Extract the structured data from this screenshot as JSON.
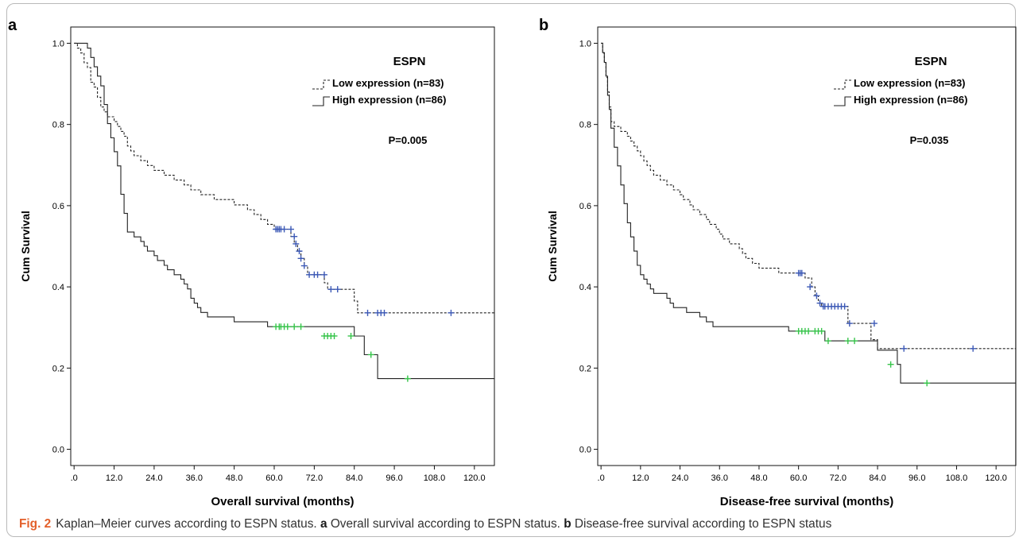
{
  "caption": {
    "fig_label": "Fig. 2",
    "intro": "Kaplan–Meier curves according to ESPN status.",
    "a_label": "a",
    "a_text": "Overall survival according to ESPN status.",
    "b_label": "b",
    "b_text": "Disease-free survival according to ESPN status"
  },
  "colors": {
    "line": "#222222",
    "low_censor": "#3c59b6",
    "high_censor": "#36c44a",
    "fig_label": "#e35f2a"
  },
  "chart_data": [
    {
      "type": "line",
      "panel_label": "a",
      "title": "ESPN",
      "xlabel": "Overall survival (months)",
      "ylabel": "Cum Survival",
      "xlim": [
        -1,
        126
      ],
      "ylim": [
        -0.04,
        1.04
      ],
      "xticks": [
        ".0",
        "12.0",
        "24.0",
        "36.0",
        "48.0",
        "60.0",
        "72.0",
        "84.0",
        "96.0",
        "108.0",
        "120.0"
      ],
      "yticks": [
        "0.0",
        "0.2",
        "0.4",
        "0.6",
        "0.8",
        "1.0"
      ],
      "grid": false,
      "legend_position": "top-right",
      "p_value": "P=0.005",
      "series": [
        {
          "name": "Low expression (n=83)",
          "style": "dashed",
          "steps": [
            [
              0,
              1.0
            ],
            [
              1,
              0.988
            ],
            [
              2,
              0.976
            ],
            [
              3,
              0.952
            ],
            [
              4,
              0.94
            ],
            [
              5,
              0.904
            ],
            [
              6,
              0.892
            ],
            [
              7,
              0.867
            ],
            [
              8,
              0.843
            ],
            [
              9,
              0.831
            ],
            [
              10,
              0.819
            ],
            [
              12,
              0.807
            ],
            [
              13,
              0.795
            ],
            [
              14,
              0.783
            ],
            [
              15,
              0.771
            ],
            [
              16,
              0.747
            ],
            [
              17,
              0.735
            ],
            [
              18,
              0.723
            ],
            [
              20,
              0.711
            ],
            [
              22,
              0.699
            ],
            [
              24,
              0.687
            ],
            [
              27,
              0.675
            ],
            [
              30,
              0.663
            ],
            [
              33,
              0.651
            ],
            [
              35,
              0.639
            ],
            [
              38,
              0.627
            ],
            [
              42,
              0.615
            ],
            [
              48,
              0.602
            ],
            [
              52,
              0.59
            ],
            [
              54,
              0.578
            ],
            [
              56,
              0.566
            ],
            [
              58,
              0.554
            ],
            [
              60,
              0.542
            ],
            [
              65,
              0.524
            ],
            [
              66,
              0.506
            ],
            [
              67,
              0.488
            ],
            [
              68,
              0.47
            ],
            [
              69,
              0.452
            ],
            [
              70,
              0.43
            ],
            [
              75,
              0.41
            ],
            [
              76,
              0.394
            ],
            [
              84,
              0.365
            ],
            [
              85,
              0.336
            ],
            [
              126,
              0.336
            ]
          ],
          "censored": [
            [
              60.5,
              0.542
            ],
            [
              61,
              0.542
            ],
            [
              61.5,
              0.542
            ],
            [
              62,
              0.542
            ],
            [
              63,
              0.542
            ],
            [
              65,
              0.542
            ],
            [
              66,
              0.524
            ],
            [
              66.5,
              0.506
            ],
            [
              67.5,
              0.488
            ],
            [
              68,
              0.47
            ],
            [
              69,
              0.452
            ],
            [
              70.5,
              0.43
            ],
            [
              72,
              0.43
            ],
            [
              73,
              0.43
            ],
            [
              75,
              0.43
            ],
            [
              77,
              0.394
            ],
            [
              79,
              0.394
            ],
            [
              88,
              0.336
            ],
            [
              91,
              0.336
            ],
            [
              92,
              0.336
            ],
            [
              93,
              0.336
            ],
            [
              113,
              0.336
            ]
          ]
        },
        {
          "name": "High expression (n=86)",
          "style": "solid",
          "steps": [
            [
              0,
              1.0
            ],
            [
              4,
              0.988
            ],
            [
              5,
              0.965
            ],
            [
              6,
              0.942
            ],
            [
              7,
              0.919
            ],
            [
              8,
              0.895
            ],
            [
              9,
              0.849
            ],
            [
              10,
              0.802
            ],
            [
              11,
              0.767
            ],
            [
              12,
              0.733
            ],
            [
              13,
              0.698
            ],
            [
              14,
              0.628
            ],
            [
              15,
              0.581
            ],
            [
              16,
              0.535
            ],
            [
              18,
              0.523
            ],
            [
              20,
              0.512
            ],
            [
              21,
              0.5
            ],
            [
              22,
              0.488
            ],
            [
              24,
              0.477
            ],
            [
              25,
              0.465
            ],
            [
              27,
              0.453
            ],
            [
              28,
              0.442
            ],
            [
              30,
              0.43
            ],
            [
              32,
              0.419
            ],
            [
              33,
              0.407
            ],
            [
              34,
              0.395
            ],
            [
              35,
              0.372
            ],
            [
              36,
              0.36
            ],
            [
              37,
              0.349
            ],
            [
              38,
              0.337
            ],
            [
              40,
              0.326
            ],
            [
              48,
              0.314
            ],
            [
              58,
              0.302
            ],
            [
              84,
              0.279
            ],
            [
              87,
              0.233
            ],
            [
              91,
              0.174
            ],
            [
              126,
              0.174
            ]
          ],
          "censored": [
            [
              60.5,
              0.302
            ],
            [
              61.5,
              0.302
            ],
            [
              62,
              0.302
            ],
            [
              63,
              0.302
            ],
            [
              64,
              0.302
            ],
            [
              66,
              0.302
            ],
            [
              68,
              0.302
            ],
            [
              75,
              0.279
            ],
            [
              76,
              0.279
            ],
            [
              77,
              0.279
            ],
            [
              78,
              0.279
            ],
            [
              83,
              0.279
            ],
            [
              89,
              0.233
            ],
            [
              100,
              0.174
            ]
          ]
        }
      ]
    },
    {
      "type": "line",
      "panel_label": "b",
      "title": "ESPN",
      "xlabel": "Disease-free survival (months)",
      "ylabel": "Cum Survival",
      "xlim": [
        -1,
        126
      ],
      "ylim": [
        -0.04,
        1.04
      ],
      "xticks": [
        ".0",
        "12.0",
        "24.0",
        "36.0",
        "48.0",
        "60.0",
        "72.0",
        "84.0",
        "96.0",
        "108.0",
        "120.0"
      ],
      "yticks": [
        "0.0",
        "0.2",
        "0.4",
        "0.6",
        "0.8",
        "1.0"
      ],
      "grid": false,
      "legend_position": "top-right",
      "p_value": "P=0.035",
      "series": [
        {
          "name": "Low expression (n=83)",
          "style": "dashed",
          "steps": [
            [
              0,
              1.0
            ],
            [
              0.5,
              0.976
            ],
            [
              1,
              0.952
            ],
            [
              1.5,
              0.916
            ],
            [
              2,
              0.88
            ],
            [
              2.5,
              0.843
            ],
            [
              3,
              0.807
            ],
            [
              4,
              0.795
            ],
            [
              6,
              0.783
            ],
            [
              8,
              0.771
            ],
            [
              9,
              0.759
            ],
            [
              10,
              0.747
            ],
            [
              11,
              0.735
            ],
            [
              12,
              0.723
            ],
            [
              13,
              0.71
            ],
            [
              14,
              0.699
            ],
            [
              15,
              0.687
            ],
            [
              16,
              0.675
            ],
            [
              18,
              0.663
            ],
            [
              20,
              0.651
            ],
            [
              22,
              0.639
            ],
            [
              24,
              0.627
            ],
            [
              25,
              0.615
            ],
            [
              27,
              0.602
            ],
            [
              28,
              0.59
            ],
            [
              30,
              0.578
            ],
            [
              32,
              0.566
            ],
            [
              33,
              0.554
            ],
            [
              35,
              0.542
            ],
            [
              36,
              0.53
            ],
            [
              37,
              0.518
            ],
            [
              39,
              0.506
            ],
            [
              42,
              0.494
            ],
            [
              43,
              0.482
            ],
            [
              44,
              0.47
            ],
            [
              46,
              0.458
            ],
            [
              48,
              0.446
            ],
            [
              54,
              0.434
            ],
            [
              62,
              0.422
            ],
            [
              64,
              0.4
            ],
            [
              65,
              0.378
            ],
            [
              66,
              0.36
            ],
            [
              67,
              0.352
            ],
            [
              75,
              0.31
            ],
            [
              82,
              0.27
            ],
            [
              84,
              0.248
            ],
            [
              126,
              0.248
            ]
          ],
          "censored": [
            [
              60,
              0.434
            ],
            [
              60.5,
              0.434
            ],
            [
              61,
              0.434
            ],
            [
              63.5,
              0.4
            ],
            [
              65.5,
              0.378
            ],
            [
              66.5,
              0.36
            ],
            [
              67.5,
              0.352
            ],
            [
              68,
              0.352
            ],
            [
              69,
              0.352
            ],
            [
              70,
              0.352
            ],
            [
              71,
              0.352
            ],
            [
              72,
              0.352
            ],
            [
              73,
              0.352
            ],
            [
              74,
              0.352
            ],
            [
              75.5,
              0.31
            ],
            [
              83,
              0.31
            ],
            [
              92,
              0.248
            ],
            [
              113,
              0.248
            ]
          ]
        },
        {
          "name": "High expression (n=86)",
          "style": "solid",
          "steps": [
            [
              0,
              1.0
            ],
            [
              0.5,
              0.977
            ],
            [
              1,
              0.953
            ],
            [
              1.5,
              0.919
            ],
            [
              2,
              0.872
            ],
            [
              2.5,
              0.837
            ],
            [
              3,
              0.791
            ],
            [
              4,
              0.744
            ],
            [
              5,
              0.698
            ],
            [
              6,
              0.651
            ],
            [
              7,
              0.605
            ],
            [
              8,
              0.558
            ],
            [
              9,
              0.523
            ],
            [
              10,
              0.488
            ],
            [
              11,
              0.453
            ],
            [
              12,
              0.43
            ],
            [
              13,
              0.419
            ],
            [
              14,
              0.407
            ],
            [
              15,
              0.395
            ],
            [
              16,
              0.384
            ],
            [
              20,
              0.372
            ],
            [
              21,
              0.36
            ],
            [
              22,
              0.349
            ],
            [
              26,
              0.337
            ],
            [
              30,
              0.326
            ],
            [
              32,
              0.314
            ],
            [
              34,
              0.302
            ],
            [
              57,
              0.291
            ],
            [
              68,
              0.267
            ],
            [
              82,
              0.267
            ],
            [
              84,
              0.244
            ],
            [
              90,
              0.209
            ],
            [
              91,
              0.163
            ],
            [
              126,
              0.163
            ]
          ],
          "censored": [
            [
              60,
              0.291
            ],
            [
              61,
              0.291
            ],
            [
              62,
              0.291
            ],
            [
              63,
              0.291
            ],
            [
              65,
              0.291
            ],
            [
              66,
              0.291
            ],
            [
              67,
              0.291
            ],
            [
              69,
              0.267
            ],
            [
              75,
              0.267
            ],
            [
              77,
              0.267
            ],
            [
              88,
              0.209
            ],
            [
              99,
              0.163
            ]
          ]
        }
      ]
    }
  ]
}
